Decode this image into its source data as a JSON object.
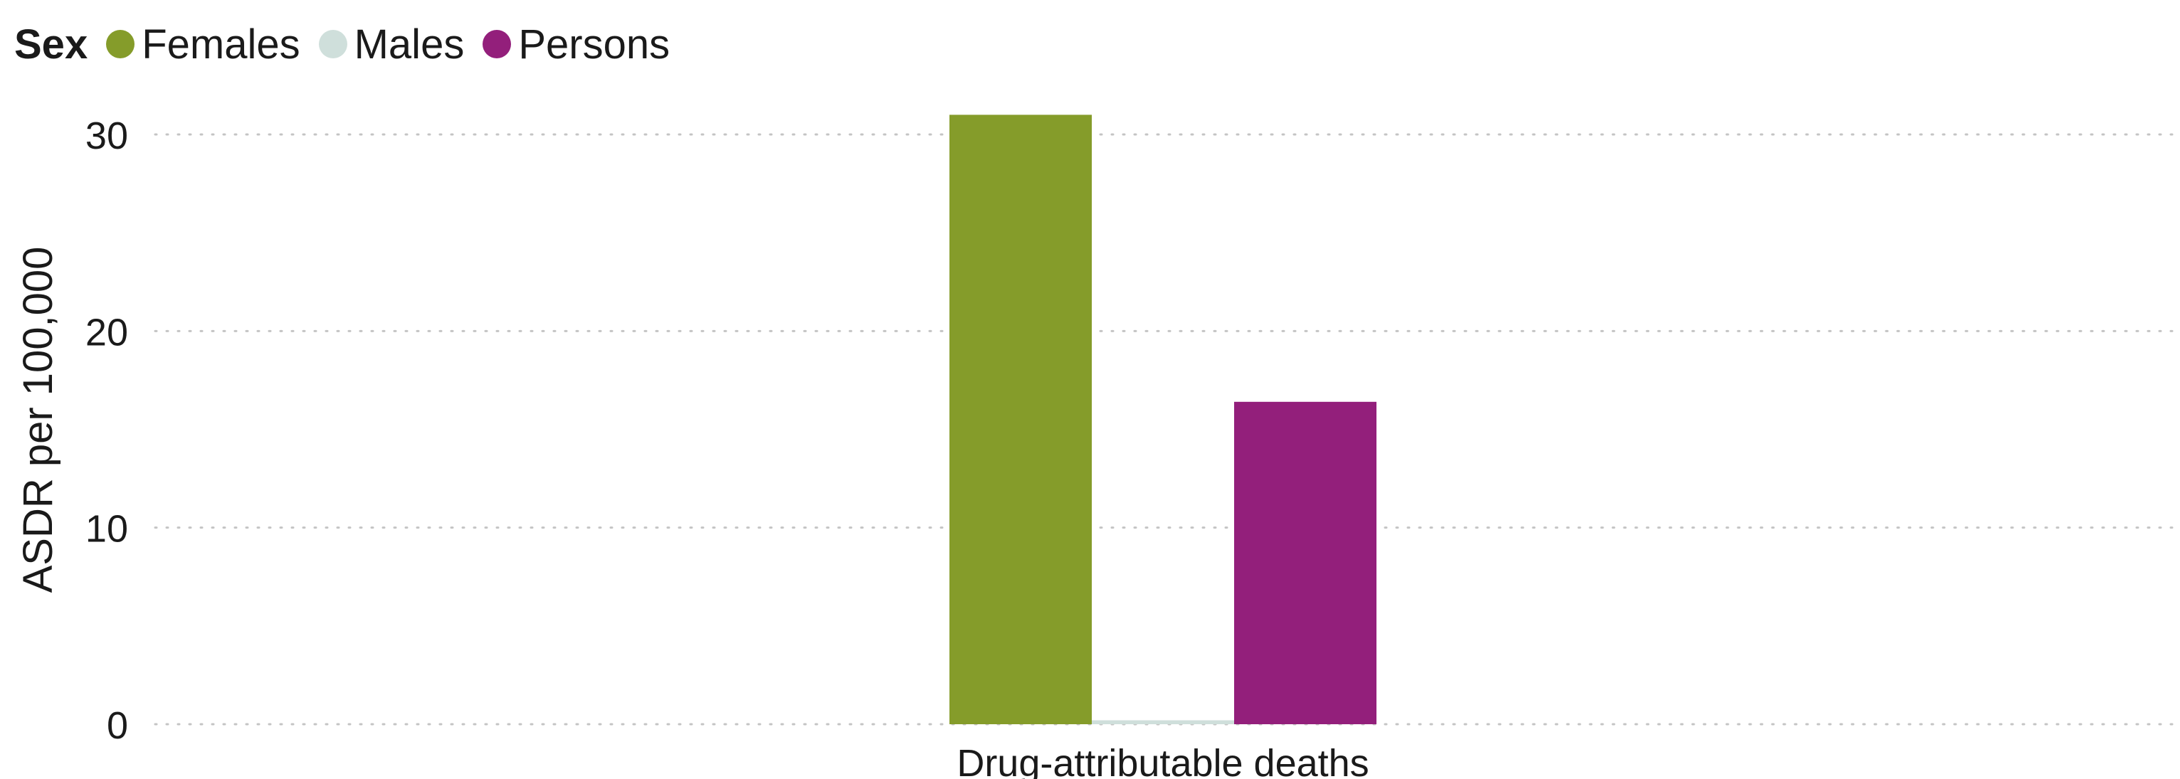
{
  "legend": {
    "title": "Sex"
  },
  "chart_data": {
    "type": "bar",
    "categories": [
      "Drug-attributable deaths"
    ],
    "series": [
      {
        "name": "Females",
        "color": "#859c2a",
        "values": [
          31.0
        ]
      },
      {
        "name": "Males",
        "color": "#cfdfdb",
        "values": [
          0.2
        ]
      },
      {
        "name": "Persons",
        "color": "#931f7b",
        "values": [
          16.4
        ]
      }
    ],
    "title": "",
    "xlabel": "",
    "ylabel": "ASDR per 100,000",
    "ylim": [
      0,
      31
    ],
    "yticks": [
      0,
      10,
      20,
      30
    ],
    "grid": true,
    "grid_style": "dotted",
    "legend_position": "top-left"
  }
}
